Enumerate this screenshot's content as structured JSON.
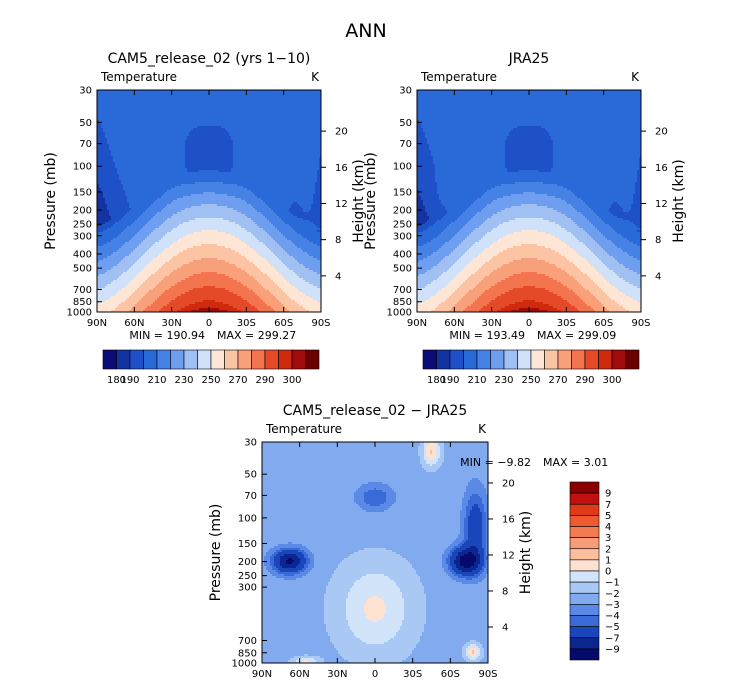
{
  "figure": {
    "title": "ANN",
    "variable_label": "Temperature",
    "units_label": "K",
    "ylabel": "Pressure (mb)",
    "ylabel_right": "Height (km)"
  },
  "chart_data": [
    {
      "type": "heatmap",
      "title": "CAM5_release_02 (yrs 1−10)",
      "variable": "Temperature",
      "units": "K",
      "xlabel": "",
      "ylabel": "Pressure (mb)",
      "ylabel_right": "Height (km)",
      "x_ticks": [
        "90N",
        "60N",
        "30N",
        "0",
        "30S",
        "60S",
        "90S"
      ],
      "x_values": [
        90,
        60,
        30,
        0,
        -30,
        -60,
        -90
      ],
      "y_ticks": [
        30,
        50,
        70,
        100,
        150,
        200,
        250,
        300,
        400,
        500,
        700,
        850,
        1000
      ],
      "y_scale": "log",
      "ylim": [
        1000,
        30
      ],
      "height_ticks_km": [
        20,
        16,
        12,
        8,
        4
      ],
      "min_label": "MIN = 190.94",
      "max_label": "MAX = 299.27",
      "min": 190.94,
      "max": 299.27,
      "colorbar": {
        "orientation": "horizontal",
        "tick_labels": [
          "180",
          "190",
          "210",
          "230",
          "250",
          "270",
          "290",
          "300"
        ],
        "levels": [
          180,
          185,
          190,
          200,
          210,
          220,
          230,
          240,
          250,
          260,
          270,
          280,
          290,
          295,
          300
        ],
        "colors": [
          "#0a0a78",
          "#1432a0",
          "#1e50c8",
          "#2a6ad8",
          "#4682e6",
          "#6e9ef0",
          "#a0c0f4",
          "#cfe2fa",
          "#fde6d6",
          "#fbc4a4",
          "#f8a07a",
          "#f27550",
          "#e54a28",
          "#d02a0e",
          "#a00c0c",
          "#6a0000"
        ]
      }
    },
    {
      "type": "heatmap",
      "title": "JRA25",
      "variable": "Temperature",
      "units": "K",
      "xlabel": "",
      "ylabel": "Pressure (mb)",
      "ylabel_right": "Height (km)",
      "x_ticks": [
        "90N",
        "60N",
        "30N",
        "0",
        "30S",
        "60S",
        "90S"
      ],
      "x_values": [
        90,
        60,
        30,
        0,
        -30,
        -60,
        -90
      ],
      "y_ticks": [
        30,
        50,
        70,
        100,
        150,
        200,
        250,
        300,
        400,
        500,
        700,
        850,
        1000
      ],
      "y_scale": "log",
      "ylim": [
        1000,
        30
      ],
      "height_ticks_km": [
        20,
        16,
        12,
        8,
        4
      ],
      "min_label": "MIN = 193.49",
      "max_label": "MAX = 299.09",
      "min": 193.49,
      "max": 299.09,
      "colorbar": {
        "orientation": "horizontal",
        "tick_labels": [
          "180",
          "190",
          "210",
          "230",
          "250",
          "270",
          "290",
          "300"
        ],
        "levels": [
          180,
          185,
          190,
          200,
          210,
          220,
          230,
          240,
          250,
          260,
          270,
          280,
          290,
          295,
          300
        ],
        "colors": [
          "#0a0a78",
          "#1432a0",
          "#1e50c8",
          "#2a6ad8",
          "#4682e6",
          "#6e9ef0",
          "#a0c0f4",
          "#cfe2fa",
          "#fde6d6",
          "#fbc4a4",
          "#f8a07a",
          "#f27550",
          "#e54a28",
          "#d02a0e",
          "#a00c0c",
          "#6a0000"
        ]
      }
    },
    {
      "type": "heatmap",
      "title": "CAM5_release_02 − JRA25",
      "variable": "Temperature",
      "units": "K",
      "xlabel": "",
      "ylabel": "Pressure (mb)",
      "ylabel_right": "Height (km)",
      "x_ticks": [
        "90N",
        "60N",
        "30N",
        "0",
        "30S",
        "60S",
        "90S"
      ],
      "x_values": [
        90,
        60,
        30,
        0,
        -30,
        -60,
        -90
      ],
      "y_ticks": [
        30,
        50,
        70,
        100,
        150,
        200,
        250,
        300,
        700,
        850,
        1000
      ],
      "y_scale": "log",
      "ylim": [
        1000,
        30
      ],
      "height_ticks_km": [
        20,
        16,
        12,
        8,
        4
      ],
      "min_label": "MIN = −9.82",
      "max_label": "MAX = 3.01",
      "min": -9.82,
      "max": 3.01,
      "colorbar": {
        "orientation": "vertical",
        "tick_labels": [
          "9",
          "7",
          "5",
          "4",
          "3",
          "2",
          "1",
          "0",
          "−1",
          "−2",
          "−3",
          "−4",
          "−5",
          "−7",
          "−9"
        ],
        "colors": [
          "#8a0000",
          "#c01010",
          "#e03a18",
          "#f05a30",
          "#f47a50",
          "#f89c78",
          "#fbbfa0",
          "#fde2d2",
          "#d2e4fa",
          "#aac8f4",
          "#82aaee",
          "#5a8ae6",
          "#3a6ad8",
          "#1a46bc",
          "#0c2690",
          "#060a6a"
        ]
      }
    }
  ]
}
